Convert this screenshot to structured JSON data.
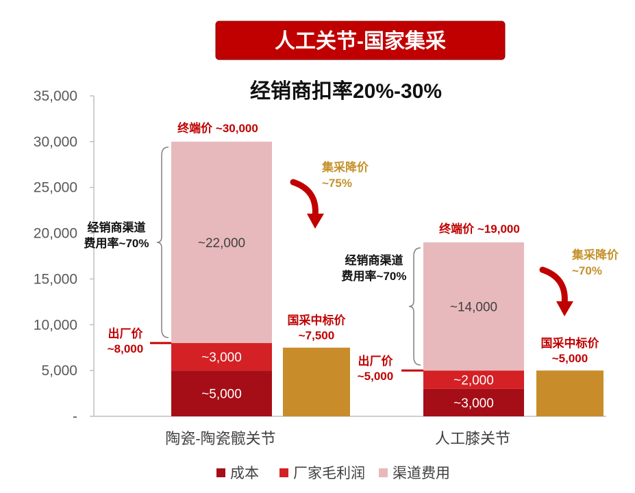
{
  "banner_title": "人工关节-国家集采",
  "subtitle": "经销商扣率20%-30%",
  "colors": {
    "cost": "#a50e17",
    "margin": "#d42125",
    "channel": "#e8b9bc",
    "procurement": "#c98c2b",
    "axis_red": "#c00000",
    "gold_text": "#c4912b"
  },
  "chart_data": {
    "type": "bar",
    "stacked": true,
    "categories": [
      "陶瓷-陶瓷髋关节",
      "人工膝关节"
    ],
    "series": [
      {
        "name": "成本",
        "values": [
          5000,
          3000
        ]
      },
      {
        "name": "厂家毛利润",
        "values": [
          3000,
          2000
        ]
      },
      {
        "name": "渠道费用",
        "values": [
          22000,
          14000
        ]
      }
    ],
    "procurement_bars": [
      7500,
      5000
    ],
    "ylim": [
      0,
      35000
    ],
    "yticks": [
      "-",
      "5,000",
      "10,000",
      "15,000",
      "20,000",
      "25,000",
      "30,000",
      "35,000"
    ],
    "ytick_values": [
      0,
      5000,
      10000,
      15000,
      20000,
      25000,
      30000,
      35000
    ],
    "segment_labels": [
      [
        "~5,000",
        "~3,000",
        "~22,000"
      ],
      [
        "~3,000",
        "~2,000",
        "~14,000"
      ]
    ],
    "legend_position": "bottom",
    "grid": false
  },
  "annotations": {
    "hip": {
      "terminal_price": "终端价 ~30,000",
      "ex_factory": [
        "出厂价",
        "~8,000"
      ],
      "channel_rate": [
        "经销商渠道",
        "费用率~70%"
      ],
      "procurement_price": [
        "国采中标价",
        "~7,500"
      ],
      "price_cut": [
        "集采降价",
        "~75%"
      ]
    },
    "knee": {
      "terminal_price": "终端价 ~19,000",
      "ex_factory": [
        "出厂价",
        "~5,000"
      ],
      "channel_rate": [
        "经销商渠道",
        "费用率~70%"
      ],
      "procurement_price": [
        "国采中标价",
        "~5,000"
      ],
      "price_cut": [
        "集采降价",
        "~70%"
      ]
    }
  }
}
